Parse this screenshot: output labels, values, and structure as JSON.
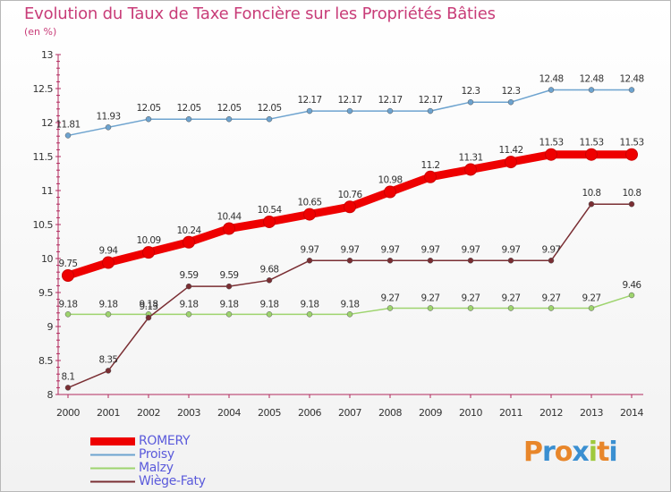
{
  "chart_data": {
    "type": "line",
    "title": "Evolution du Taux de Taxe Foncière sur les Propriétés Bâties",
    "unit": "(en %)",
    "xlabel": "",
    "ylabel": "",
    "ylim": [
      8,
      13
    ],
    "yticks": [
      "8",
      "8.5",
      "9",
      "9.5",
      "10",
      "10.5",
      "11",
      "11.5",
      "12",
      "12.5",
      "13"
    ],
    "x": [
      "2000",
      "2001",
      "2002",
      "2003",
      "2004",
      "2005",
      "2006",
      "2007",
      "2008",
      "2009",
      "2010",
      "2011",
      "2012",
      "2013",
      "2014"
    ],
    "series": [
      {
        "name": "ROMERY",
        "color": "#ee0000",
        "values": [
          9.75,
          9.94,
          10.09,
          10.24,
          10.44,
          10.54,
          10.65,
          10.76,
          10.98,
          11.2,
          11.31,
          11.42,
          11.53,
          11.53,
          11.53
        ],
        "labels": [
          "9.75",
          "9.94",
          "10.09",
          "10.24",
          "10.44",
          "10.54",
          "10.65",
          "10.76",
          "10.98",
          "11.2",
          "11.31",
          "11.42",
          "11.53",
          "11.53",
          "11.53"
        ]
      },
      {
        "name": "Proisy",
        "color": "#6da3cf",
        "values": [
          11.81,
          11.93,
          12.05,
          12.05,
          12.05,
          12.05,
          12.17,
          12.17,
          12.17,
          12.17,
          12.3,
          12.3,
          12.48,
          12.48,
          12.48
        ],
        "labels": [
          "11.81",
          "11.93",
          "12.05",
          "12.05",
          "12.05",
          "12.05",
          "12.17",
          "12.17",
          "12.17",
          "12.17",
          "12.3",
          "12.3",
          "12.48",
          "12.48",
          "12.48"
        ]
      },
      {
        "name": "Malzy",
        "color": "#9ed46e",
        "values": [
          9.18,
          9.18,
          9.18,
          9.18,
          9.18,
          9.18,
          9.18,
          9.18,
          9.27,
          9.27,
          9.27,
          9.27,
          9.27,
          9.27,
          9.46
        ],
        "labels": [
          "9.18",
          "9.18",
          "9.18",
          "9.18",
          "9.18",
          "9.18",
          "9.18",
          "9.18",
          "9.27",
          "9.27",
          "9.27",
          "9.27",
          "9.27",
          "9.27",
          "9.46"
        ]
      },
      {
        "name": "Wiège-Faty",
        "color": "#7a2e33",
        "values": [
          8.1,
          8.35,
          9.13,
          9.59,
          9.59,
          9.68,
          9.97,
          9.97,
          9.97,
          9.97,
          9.97,
          9.97,
          9.97,
          10.8,
          10.8
        ],
        "labels": [
          "8.1",
          "8.35",
          "9.13",
          "9.59",
          "9.59",
          "9.68",
          "9.97",
          "9.97",
          "9.97",
          "9.97",
          "9.97",
          "9.97",
          "9.97",
          "10.8",
          "10.8"
        ]
      }
    ]
  },
  "logo": {
    "letters": [
      "P",
      "r",
      "o",
      "x",
      "i",
      "t",
      "i"
    ],
    "colors": [
      "#e8862a",
      "#3a8fd1",
      "#e8862a",
      "#3a8fd1",
      "#9fc93c",
      "#e8862a",
      "#3a8fd1"
    ]
  }
}
